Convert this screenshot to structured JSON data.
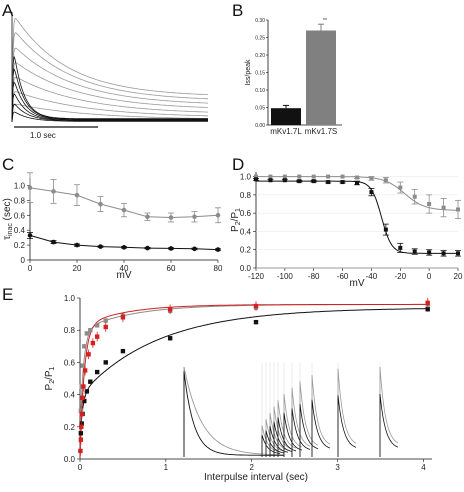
{
  "panels": {
    "a": {
      "letter": "A",
      "scale_bar_label": "1.0 sec"
    },
    "b": {
      "letter": "B"
    },
    "c": {
      "letter": "C"
    },
    "d": {
      "letter": "D"
    },
    "e": {
      "letter": "E"
    }
  },
  "colors": {
    "black": "#111111",
    "gray": "#8c8c8c",
    "red": "#d62020",
    "light_gray": "#b0b0b0"
  },
  "chart_data": [
    {
      "id": "A",
      "type": "line",
      "description_free": true,
      "traces_gray": [
        {
          "peak": 1.0,
          "plateau": 0.23,
          "tau": 0.7
        },
        {
          "peak": 0.86,
          "plateau": 0.19,
          "tau": 0.75
        },
        {
          "peak": 0.71,
          "plateau": 0.15,
          "tau": 0.8
        },
        {
          "peak": 0.57,
          "plateau": 0.11,
          "tau": 0.85
        },
        {
          "peak": 0.43,
          "plateau": 0.07,
          "tau": 0.9
        },
        {
          "peak": 0.29,
          "plateau": 0.04,
          "tau": 0.95
        },
        {
          "peak": 0.17,
          "plateau": 0.02,
          "tau": 1.0
        }
      ],
      "traces_black": [
        {
          "peak": 0.78,
          "plateau": 0.03,
          "tau": 0.13
        },
        {
          "peak": 0.62,
          "plateau": 0.025,
          "tau": 0.14
        },
        {
          "peak": 0.46,
          "plateau": 0.02,
          "tau": 0.15
        },
        {
          "peak": 0.32,
          "plateau": 0.015,
          "tau": 0.16
        },
        {
          "peak": 0.2,
          "plateau": 0.01,
          "tau": 0.18
        },
        {
          "peak": 0.11,
          "plateau": 0.005,
          "tau": 0.2
        }
      ],
      "scale_bar_sec": 1.0
    },
    {
      "id": "B",
      "type": "bar",
      "categories": [
        "mKv1.7L",
        "mKv1.7S"
      ],
      "values": [
        0.048,
        0.27
      ],
      "errors": [
        0.008,
        0.018
      ],
      "colors": [
        "#111111",
        "#808080"
      ],
      "ylabel": "Iss/peak",
      "ylim": [
        0,
        0.3
      ],
      "yticks": [
        "0.00",
        "0.05",
        "0.10",
        "0.15",
        "0.20",
        "0.25",
        "0.30"
      ],
      "annotation": "**"
    },
    {
      "id": "C",
      "type": "scatter",
      "xlabel": "mV",
      "ylabel_main": "τ",
      "ylabel_sub": "inac",
      "ylabel_unit": "(sec)",
      "xlim": [
        0,
        80
      ],
      "ylim": [
        0,
        1.1
      ],
      "xticks": [
        "0",
        "20",
        "40",
        "60",
        "80"
      ],
      "yticks": [
        "0",
        "0.2",
        "0.4",
        "0.6",
        "0.8",
        "1.0"
      ],
      "series": [
        {
          "color": "#8c8c8c",
          "x": [
            0,
            10,
            20,
            30,
            40,
            50,
            60,
            70,
            80
          ],
          "y": [
            0.97,
            0.92,
            0.87,
            0.75,
            0.67,
            0.58,
            0.57,
            0.58,
            0.6
          ],
          "err": [
            0.2,
            0.16,
            0.14,
            0.1,
            0.09,
            0.05,
            0.06,
            0.07,
            0.1
          ]
        },
        {
          "color": "#111111",
          "x": [
            0,
            10,
            20,
            30,
            40,
            50,
            60,
            70,
            80
          ],
          "y": [
            0.33,
            0.24,
            0.2,
            0.18,
            0.17,
            0.16,
            0.155,
            0.15,
            0.14
          ],
          "err": [
            0.04,
            0.02,
            0.015,
            0.01,
            0.01,
            0.01,
            0.01,
            0.01,
            0.01
          ]
        }
      ]
    },
    {
      "id": "D",
      "type": "scatter",
      "xlabel": "mV",
      "ylabel_main": "P",
      "ylabel_s1": "2",
      "ylabel_mid": "/P",
      "ylabel_s2": "1",
      "xlim": [
        -120,
        20
      ],
      "ylim": [
        0,
        1.05
      ],
      "xticks": [
        "-120",
        "-100",
        "-80",
        "-60",
        "-40",
        "-20",
        "0",
        "20"
      ],
      "yticks": [
        "0.0",
        "0.2",
        "0.4",
        "0.6",
        "0.8",
        "1.0"
      ],
      "series": [
        {
          "color": "#8c8c8c",
          "x": [
            -120,
            -110,
            -100,
            -90,
            -80,
            -70,
            -60,
            -50,
            -40,
            -30,
            -20,
            -10,
            0,
            10,
            20
          ],
          "y": [
            1.0,
            1.0,
            1.0,
            1.0,
            1.0,
            1.0,
            1.0,
            0.99,
            0.98,
            0.96,
            0.88,
            0.78,
            0.7,
            0.66,
            0.64
          ],
          "err": [
            0,
            0,
            0,
            0,
            0,
            0,
            0,
            0.01,
            0.02,
            0.03,
            0.06,
            0.08,
            0.1,
            0.1,
            0.1
          ]
        },
        {
          "color": "#111111",
          "x": [
            -120,
            -110,
            -100,
            -90,
            -80,
            -70,
            -60,
            -50,
            -40,
            -30,
            -20,
            -10,
            0,
            10,
            20
          ],
          "y": [
            0.97,
            0.96,
            0.96,
            0.95,
            0.95,
            0.94,
            0.94,
            0.93,
            0.83,
            0.42,
            0.22,
            0.18,
            0.17,
            0.16,
            0.16
          ],
          "err": [
            0.01,
            0.01,
            0.01,
            0.01,
            0.01,
            0.01,
            0.01,
            0.02,
            0.04,
            0.06,
            0.05,
            0.03,
            0.03,
            0.03,
            0.03
          ]
        }
      ]
    },
    {
      "id": "E",
      "type": "scatter",
      "xlabel": "Interpulse interval (sec)",
      "ylabel_main": "P",
      "ylabel_s1": "2",
      "ylabel_mid": "/P",
      "ylabel_s2": "1",
      "xlim": [
        0,
        4.1
      ],
      "ylim": [
        0,
        1.0
      ],
      "xticks": [
        "0",
        "1",
        "2",
        "3",
        "4"
      ],
      "yticks": [
        "0.0",
        "0.2",
        "0.4",
        "0.6",
        "0.8",
        "1.0"
      ],
      "series": [
        {
          "color": "#111111",
          "x": [
            0.01,
            0.02,
            0.03,
            0.05,
            0.08,
            0.12,
            0.2,
            0.3,
            0.5,
            1.05,
            2.05,
            4.05
          ],
          "y": [
            0.16,
            0.22,
            0.28,
            0.36,
            0.42,
            0.48,
            0.54,
            0.6,
            0.67,
            0.75,
            0.85,
            0.93
          ]
        },
        {
          "color": "#8c8c8c",
          "x": [
            0.01,
            0.02,
            0.03,
            0.05,
            0.08,
            0.12,
            0.2,
            0.3,
            0.5,
            1.05,
            2.05,
            4.05
          ],
          "y": [
            0.3,
            0.45,
            0.58,
            0.7,
            0.78,
            0.8,
            0.83,
            0.86,
            0.89,
            0.92,
            0.94,
            0.96
          ]
        },
        {
          "color": "#d62020",
          "x": [
            0.005,
            0.01,
            0.015,
            0.02,
            0.03,
            0.04,
            0.06,
            0.1,
            0.15,
            0.2,
            0.3,
            0.5,
            1.05,
            2.05,
            4.05
          ],
          "y": [
            0.05,
            0.12,
            0.2,
            0.28,
            0.38,
            0.45,
            0.55,
            0.65,
            0.72,
            0.76,
            0.82,
            0.88,
            0.93,
            0.95,
            0.97
          ]
        }
      ],
      "inset": {
        "description": "paired pulse traces"
      }
    }
  ]
}
